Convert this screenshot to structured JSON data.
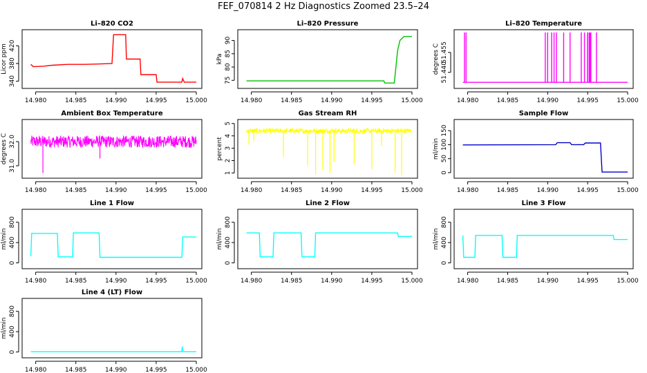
{
  "title": "FEF_070814  2 Hz Diagnostics Zoomed 23.5–24",
  "colors": {
    "red": "#ff0000",
    "green": "#00c000",
    "magenta": "#ff00ff",
    "yellow": "#ffff00",
    "blue": "#0000c8",
    "cyan": "#00ffff"
  },
  "chart_data": [
    {
      "type": "line",
      "title": "Li–820 CO2",
      "ylabel": "Licor ppm",
      "color": "#ff0000",
      "xlim": [
        14.979,
        15.0
      ],
      "ylim": [
        330,
        450
      ],
      "xticks": [
        "14.980",
        "14.985",
        "14.990",
        "14.995",
        "15.000"
      ],
      "xtick_values": [
        14.98,
        14.985,
        14.99,
        14.995,
        15.0
      ],
      "yticks": [
        "340",
        "380",
        "420"
      ],
      "ytick_values": [
        340,
        380,
        420
      ],
      "series": [
        {
          "x": [
            14.9794,
            14.9797,
            14.98,
            14.981,
            14.982,
            14.984,
            14.986,
            14.988,
            14.9895,
            14.9897,
            14.9912,
            14.9913,
            14.993,
            14.9931,
            14.995,
            14.9951,
            14.9982,
            14.9983,
            14.9985,
            15.0
          ],
          "y": [
            378,
            373,
            373,
            374,
            376,
            378,
            378,
            379,
            380,
            445,
            445,
            390,
            390,
            355,
            355,
            338,
            338,
            346,
            338,
            338
          ]
        }
      ]
    },
    {
      "type": "line",
      "title": "Li–820 Pressure",
      "ylabel": "kPa",
      "color": "#00c000",
      "xlim": [
        14.979,
        15.0
      ],
      "ylim": [
        73,
        93
      ],
      "xticks": [
        "14.980",
        "14.985",
        "14.990",
        "14.995",
        "15.000"
      ],
      "xtick_values": [
        14.98,
        14.985,
        14.99,
        14.995,
        15.0
      ],
      "yticks": [
        "75",
        "80",
        "85",
        "90"
      ],
      "ytick_values": [
        75,
        80,
        85,
        90
      ],
      "series": [
        {
          "x": [
            14.9794,
            14.9965,
            14.9966,
            14.9978,
            14.998,
            14.9982,
            14.9985,
            14.999,
            15.0
          ],
          "y": [
            74.8,
            74.8,
            74.0,
            74.0,
            80,
            86,
            90,
            91.5,
            91.5
          ]
        }
      ]
    },
    {
      "type": "line",
      "title": "Li–820 Temperature",
      "ylabel": "degrees C",
      "color": "#ff00ff",
      "xlim": [
        14.979,
        15.0
      ],
      "ylim": [
        51.43,
        51.47
      ],
      "xticks": [
        "14.980",
        "14.985",
        "14.990",
        "14.995",
        "15.000"
      ],
      "xtick_values": [
        14.98,
        14.985,
        14.99,
        14.995,
        15.0
      ],
      "yticks": [
        "51.440",
        "51.455"
      ],
      "ytick_values": [
        51.44,
        51.455
      ],
      "baseline": 51.4325,
      "spike_top": 51.47,
      "spikes": [
        14.9796,
        14.9798,
        14.995,
        14.9952,
        14.9954,
        14.9897,
        14.99,
        14.9905,
        14.9908,
        14.9911,
        14.992,
        14.9928,
        14.9942,
        14.9946,
        14.995,
        14.9953,
        14.9961
      ]
    },
    {
      "type": "line",
      "title": "Ambient Box Temperature",
      "ylabel": "degrees C",
      "color": "#ff00ff",
      "xlim": [
        14.979,
        15.0
      ],
      "ylim": [
        30.6,
        32.8
      ],
      "xticks": [
        "14.980",
        "14.985",
        "14.990",
        "14.995",
        "15.000"
      ],
      "xtick_values": [
        14.98,
        14.985,
        14.99,
        14.995,
        15.0
      ],
      "yticks": [
        "31.0",
        "32.0"
      ],
      "ytick_values": [
        31.0,
        32.0
      ],
      "band": {
        "mean": 32.0,
        "noise": 0.25,
        "dips": [
          [
            14.9809,
            30.7
          ],
          [
            14.988,
            31.3
          ]
        ]
      }
    },
    {
      "type": "line",
      "title": "Gas Stream RH",
      "ylabel": "percent",
      "color": "#ffff00",
      "xlim": [
        14.979,
        15.0
      ],
      "ylim": [
        0.8,
        5.1
      ],
      "xticks": [
        "14.980",
        "14.985",
        "14.990",
        "14.995",
        "15.000"
      ],
      "xtick_values": [
        14.98,
        14.985,
        14.99,
        14.995,
        15.0
      ],
      "yticks": [
        "1",
        "2",
        "3",
        "4",
        "5"
      ],
      "ytick_values": [
        1,
        2,
        3,
        4,
        5
      ],
      "band": {
        "mean": 4.4,
        "noise": 0.2,
        "dips": [
          [
            14.9797,
            3.3
          ],
          [
            14.9803,
            3.6
          ],
          [
            14.984,
            2.3
          ],
          [
            14.987,
            1.6
          ],
          [
            14.988,
            0.9
          ],
          [
            14.9889,
            1.2
          ],
          [
            14.9898,
            1.0
          ],
          [
            14.9903,
            1.9
          ],
          [
            14.9928,
            1.7
          ],
          [
            14.995,
            1.3
          ],
          [
            14.9979,
            1.0
          ],
          [
            14.9987,
            0.8
          ],
          [
            14.9962,
            3.2
          ]
        ]
      }
    },
    {
      "type": "line",
      "title": "Sample Flow",
      "ylabel": "ml/min",
      "color": "#0000c8",
      "xlim": [
        14.979,
        15.0
      ],
      "ylim": [
        -10,
        180
      ],
      "xticks": [
        "14.980",
        "14.985",
        "14.990",
        "14.995",
        "15.000"
      ],
      "xtick_values": [
        14.98,
        14.985,
        14.99,
        14.995,
        15.0
      ],
      "yticks": [
        "0",
        "50",
        "100",
        "150"
      ],
      "ytick_values": [
        0,
        50,
        100,
        150
      ],
      "series": [
        {
          "x": [
            14.9794,
            14.991,
            14.9912,
            14.9928,
            14.993,
            14.9945,
            14.9947,
            14.9966,
            14.9968,
            15.0
          ],
          "y": [
            99,
            100,
            107,
            107,
            100,
            100,
            106,
            106,
            2,
            2
          ]
        }
      ]
    },
    {
      "type": "line",
      "title": "Line 1 Flow",
      "ylabel": "ml/min",
      "color": "#00ffff",
      "xlim": [
        14.979,
        15.0
      ],
      "ylim": [
        -60,
        1000
      ],
      "xticks": [
        "14.980",
        "14.985",
        "14.990",
        "14.995",
        "15.000"
      ],
      "xtick_values": [
        14.98,
        14.985,
        14.99,
        14.995,
        15.0
      ],
      "yticks": [
        "0",
        "400",
        "800"
      ],
      "ytick_values": [
        0,
        400,
        800
      ],
      "series": [
        {
          "x": [
            14.9794,
            14.9795,
            14.9827,
            14.9828,
            14.9846,
            14.9847,
            14.9879,
            14.988,
            14.9982,
            14.9983,
            15.0
          ],
          "y": [
            130,
            580,
            580,
            120,
            120,
            590,
            590,
            110,
            110,
            510,
            510
          ]
        }
      ]
    },
    {
      "type": "line",
      "title": "Line 2 Flow",
      "ylabel": "ml/min",
      "color": "#00ffff",
      "xlim": [
        14.979,
        15.0
      ],
      "ylim": [
        -60,
        1000
      ],
      "xticks": [
        "14.980",
        "14.985",
        "14.990",
        "14.995",
        "15.000"
      ],
      "xtick_values": [
        14.98,
        14.985,
        14.99,
        14.995,
        15.0
      ],
      "yticks": [
        "0",
        "400",
        "800"
      ],
      "ytick_values": [
        0,
        400,
        800
      ],
      "series": [
        {
          "x": [
            14.9794,
            14.981,
            14.9811,
            14.9827,
            14.9828,
            14.9862,
            14.9863,
            14.9879,
            14.988,
            14.9982,
            14.9983,
            15.0
          ],
          "y": [
            590,
            590,
            120,
            120,
            590,
            590,
            120,
            120,
            590,
            590,
            520,
            520
          ]
        }
      ]
    },
    {
      "type": "line",
      "title": "Line 3 Flow",
      "ylabel": "ml/min",
      "color": "#00ffff",
      "xlim": [
        14.979,
        15.0
      ],
      "ylim": [
        -60,
        1000
      ],
      "xticks": [
        "14.980",
        "14.985",
        "14.990",
        "14.995",
        "15.000"
      ],
      "xtick_values": [
        14.98,
        14.985,
        14.99,
        14.995,
        15.0
      ],
      "yticks": [
        "0",
        "400",
        "800"
      ],
      "ytick_values": [
        0,
        400,
        800
      ],
      "series": [
        {
          "x": [
            14.9794,
            14.9795,
            14.9809,
            14.981,
            14.9843,
            14.9844,
            14.9861,
            14.9862,
            14.9982,
            14.9983,
            15.0
          ],
          "y": [
            540,
            110,
            110,
            540,
            540,
            110,
            110,
            540,
            540,
            460,
            460
          ]
        }
      ]
    },
    {
      "type": "line",
      "title": "Line 4 (LT) Flow",
      "ylabel": "ml/min",
      "color": "#00ffff",
      "xlim": [
        14.979,
        15.0
      ],
      "ylim": [
        -60,
        1000
      ],
      "xticks": [
        "14.980",
        "14.985",
        "14.990",
        "14.995",
        "15.000"
      ],
      "xtick_values": [
        14.98,
        14.985,
        14.99,
        14.995,
        15.0
      ],
      "yticks": [
        "0",
        "400",
        "800"
      ],
      "ytick_values": [
        0,
        400,
        800
      ],
      "series": [
        {
          "x": [
            14.9794,
            14.9982,
            14.99825,
            14.9983,
            14.9985,
            15.0
          ],
          "y": [
            5,
            5,
            110,
            20,
            5,
            5
          ]
        }
      ]
    }
  ]
}
